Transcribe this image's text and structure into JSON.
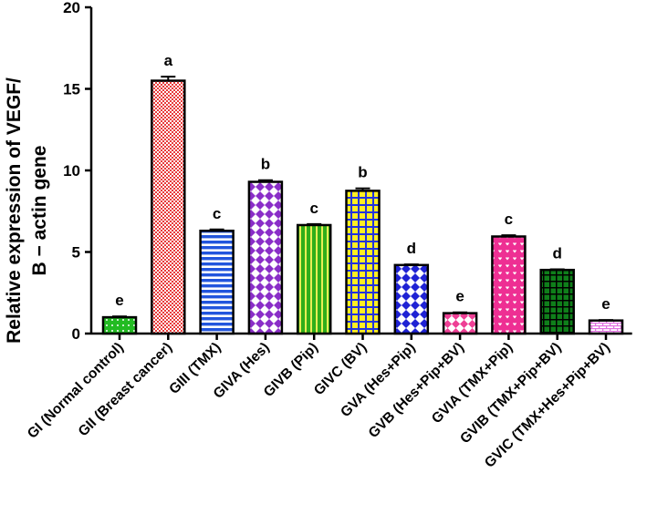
{
  "chart_data": {
    "type": "bar",
    "ylabel_line1": "Relative expression of VEGF/",
    "ylabel_line2": "B − actin gene",
    "ylim": [
      0,
      20
    ],
    "yticks": [
      "0",
      "5",
      "10",
      "15",
      "20"
    ],
    "categories": [
      "GI (Normal control)",
      "GII (Breast cancer)",
      "GIII (TMX)",
      "GIVA (Hes)",
      "GIVB (Pip)",
      "GIVC (BV)",
      "GVA (Hes+Pip)",
      "GVB (Hes+Pip+BV)",
      "GVIA (TMX+Pip)",
      "GVIB (TMX+Pip+BV)",
      "GVIC (TMX+Hes+Pip+BV)"
    ],
    "values": [
      1.0,
      15.5,
      6.3,
      9.3,
      6.65,
      8.75,
      4.2,
      1.25,
      5.95,
      3.9,
      0.8
    ],
    "errors": [
      0.05,
      0.25,
      0.08,
      0.1,
      0.06,
      0.15,
      0.04,
      0.05,
      0.08,
      0.04,
      0.03
    ],
    "significance": [
      "e",
      "a",
      "c",
      "b",
      "c",
      "b",
      "d",
      "e",
      "c",
      "d",
      "e"
    ],
    "colors": [
      "#22bb22",
      "#ee4444",
      "#2255dd",
      "#9933cc",
      "#33bb22",
      "#ffee33",
      "#2222dd",
      "#ee4499",
      "#ee3399",
      "#118811",
      "#ee88ee"
    ],
    "patterns": [
      "dots",
      "checker",
      "hlines",
      "diamonds",
      "vlines",
      "grid",
      "diamonds",
      "diamonds",
      "hearts",
      "grid",
      "hbrick"
    ]
  }
}
